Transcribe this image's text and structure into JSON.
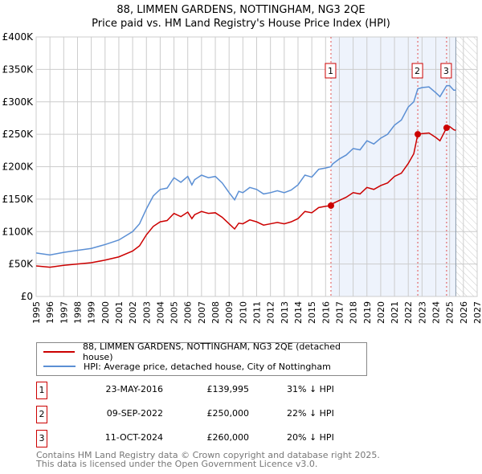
{
  "chart_data": {
    "type": "line",
    "title": "88, LIMMEN GARDENS, NOTTINGHAM, NG3 2QE",
    "subtitle": "Price paid vs. HM Land Registry's House Price Index (HPI)",
    "xlim": [
      1995,
      2027
    ],
    "ylim": [
      0,
      400000
    ],
    "xticks": [
      "1995",
      "1996",
      "1997",
      "1998",
      "1999",
      "2000",
      "2001",
      "2002",
      "2003",
      "2004",
      "2005",
      "2006",
      "2007",
      "2008",
      "2009",
      "2010",
      "2011",
      "2012",
      "2013",
      "2014",
      "2015",
      "2016",
      "2017",
      "2018",
      "2019",
      "2020",
      "2021",
      "2022",
      "2023",
      "2024",
      "2025",
      "2026",
      "2027"
    ],
    "yticks": [
      {
        "v": 0,
        "label": "£0"
      },
      {
        "v": 50000,
        "label": "£50K"
      },
      {
        "v": 100000,
        "label": "£100K"
      },
      {
        "v": 150000,
        "label": "£150K"
      },
      {
        "v": 200000,
        "label": "£200K"
      },
      {
        "v": 250000,
        "label": "£250K"
      },
      {
        "v": 300000,
        "label": "£300K"
      },
      {
        "v": 350000,
        "label": "£350K"
      },
      {
        "v": 400000,
        "label": "£400K"
      }
    ],
    "grid": true,
    "data_end": 2025.45,
    "x": [
      1995,
      1996,
      1997,
      1998,
      1999,
      2000,
      2001,
      2002,
      2002.5,
      2003,
      2003.5,
      2004,
      2004.5,
      2005,
      2005.5,
      2006,
      2006.3,
      2006.5,
      2007,
      2007.5,
      2008,
      2008.5,
      2009,
      2009.4,
      2009.7,
      2010,
      2010.5,
      2011,
      2011.5,
      2012,
      2012.5,
      2013,
      2013.5,
      2014,
      2014.5,
      2015,
      2015.5,
      2016,
      2016.39,
      2016.5,
      2017,
      2017.5,
      2018,
      2018.5,
      2019,
      2019.5,
      2020,
      2020.5,
      2021,
      2021.5,
      2022,
      2022.4,
      2022.69,
      2023,
      2023.5,
      2024,
      2024.3,
      2024.78,
      2025,
      2025.3,
      2025.45
    ],
    "series": [
      {
        "name": "88, LIMMEN GARDENS, NOTTINGHAM, NG3 2QE (detached house)",
        "color": "#cc0000",
        "values": [
          47,
          45,
          48,
          50,
          52,
          56,
          61,
          70,
          78,
          95,
          108,
          115,
          117,
          128,
          123,
          130,
          120,
          126,
          131,
          128,
          129,
          122,
          112,
          104,
          113,
          112,
          118,
          115,
          110,
          112,
          114,
          112,
          115,
          120,
          131,
          129,
          137,
          139,
          140,
          143,
          148,
          153,
          160,
          158,
          168,
          165,
          171,
          175,
          185,
          190,
          205,
          220,
          250,
          251,
          252,
          245,
          240,
          260,
          262,
          257,
          256
        ]
      },
      {
        "name": "HPI: Average price, detached house, City of Nottingham",
        "color": "#5b8fd4",
        "values": [
          67,
          64,
          68,
          71,
          74,
          80,
          87,
          100,
          112,
          135,
          155,
          165,
          167,
          183,
          176,
          185,
          172,
          180,
          187,
          183,
          185,
          175,
          160,
          149,
          162,
          160,
          168,
          165,
          158,
          160,
          163,
          160,
          164,
          172,
          187,
          184,
          196,
          198,
          200,
          204,
          212,
          218,
          228,
          226,
          240,
          235,
          244,
          250,
          264,
          272,
          292,
          300,
          320,
          322,
          323,
          314,
          308,
          325,
          325,
          318,
          318
        ]
      }
    ],
    "value_unit": "thousands GBP",
    "sales": [
      {
        "n": "1",
        "x": 2016.39,
        "price": 139995,
        "date": "23-MAY-2016",
        "price_label": "£139,995",
        "pct": "31% ↓ HPI"
      },
      {
        "n": "2",
        "x": 2022.69,
        "price": 250000,
        "date": "09-SEP-2022",
        "price_label": "£250,000",
        "pct": "22% ↓ HPI"
      },
      {
        "n": "3",
        "x": 2024.78,
        "price": 260000,
        "date": "11-OCT-2024",
        "price_label": "£260,000",
        "pct": "20% ↓ HPI"
      }
    ],
    "legend_position": "below"
  },
  "footer": {
    "line1": "Contains HM Land Registry data © Crown copyright and database right 2025.",
    "line2": "This data is licensed under the Open Government Licence v3.0."
  }
}
